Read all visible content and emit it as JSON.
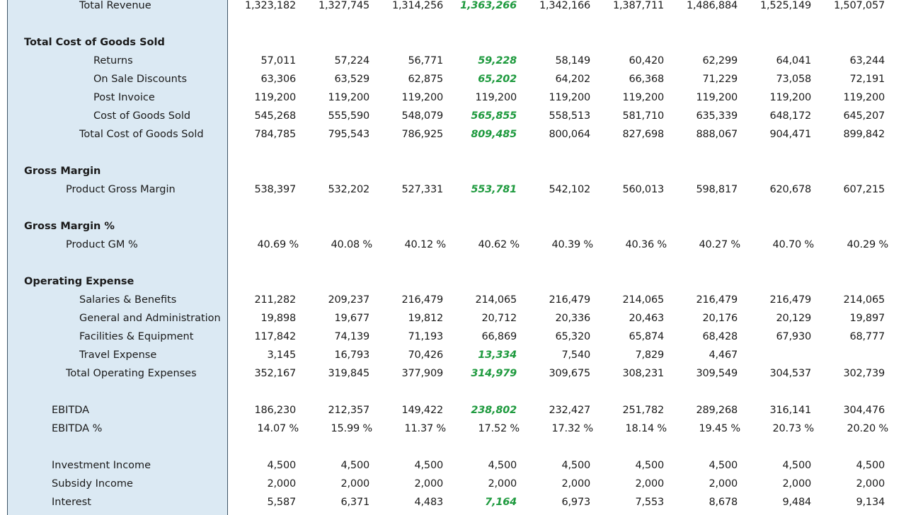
{
  "highlight_color": "#1e9a3e",
  "sidebar_color": "#dbe9f3",
  "rows": [
    {
      "label": "Total Revenue",
      "indent": 2,
      "bold": false,
      "pct": false,
      "values": [
        "1,323,182",
        "1,327,745",
        "1,314,256",
        "1,363,266",
        "1,342,166",
        "1,387,711",
        "1,486,884",
        "1,525,149",
        "1,507,057"
      ],
      "highlight": [
        3
      ]
    },
    {
      "label": "Total Cost of Goods Sold",
      "indent": 0,
      "bold": true,
      "pct": false,
      "values": [],
      "highlight": []
    },
    {
      "label": "Returns",
      "indent": 3,
      "bold": false,
      "pct": false,
      "values": [
        "57,011",
        "57,224",
        "56,771",
        "59,228",
        "58,149",
        "60,420",
        "62,299",
        "64,041",
        "63,244"
      ],
      "highlight": [
        3
      ]
    },
    {
      "label": "On Sale Discounts",
      "indent": 3,
      "bold": false,
      "pct": false,
      "values": [
        "63,306",
        "63,529",
        "62,875",
        "65,202",
        "64,202",
        "66,368",
        "71,229",
        "73,058",
        "72,191"
      ],
      "highlight": [
        3
      ]
    },
    {
      "label": "Post Invoice",
      "indent": 3,
      "bold": false,
      "pct": false,
      "values": [
        "119,200",
        "119,200",
        "119,200",
        "119,200",
        "119,200",
        "119,200",
        "119,200",
        "119,200",
        "119,200"
      ],
      "highlight": []
    },
    {
      "label": "Cost of Goods Sold",
      "indent": 3,
      "bold": false,
      "pct": false,
      "values": [
        "545,268",
        "555,590",
        "548,079",
        "565,855",
        "558,513",
        "581,710",
        "635,339",
        "648,172",
        "645,207"
      ],
      "highlight": [
        3
      ]
    },
    {
      "label": "Total Cost of Goods Sold",
      "indent": 2,
      "bold": false,
      "pct": false,
      "values": [
        "784,785",
        "795,543",
        "786,925",
        "809,485",
        "800,064",
        "827,698",
        "888,067",
        "904,471",
        "899,842"
      ],
      "highlight": [
        3
      ]
    },
    {
      "label": "Gross Margin",
      "indent": 0,
      "bold": true,
      "pct": false,
      "values": [],
      "highlight": []
    },
    {
      "label": "Product Gross Margin",
      "indent": 1,
      "bold": false,
      "pct": false,
      "values": [
        "538,397",
        "532,202",
        "527,331",
        "553,781",
        "542,102",
        "560,013",
        "598,817",
        "620,678",
        "607,215"
      ],
      "highlight": [
        3
      ]
    },
    {
      "label": "Gross Margin %",
      "indent": 0,
      "bold": true,
      "pct": false,
      "values": [],
      "highlight": []
    },
    {
      "label": "Product GM %",
      "indent": 1,
      "bold": false,
      "pct": true,
      "values": [
        "40.69 %",
        "40.08 %",
        "40.12 %",
        "40.62 %",
        "40.39 %",
        "40.36 %",
        "40.27 %",
        "40.70 %",
        "40.29 %"
      ],
      "highlight": []
    },
    {
      "label": "Operating Expense",
      "indent": 0,
      "bold": true,
      "pct": false,
      "values": [],
      "highlight": []
    },
    {
      "label": "Salaries & Benefits",
      "indent": 2,
      "bold": false,
      "pct": false,
      "values": [
        "211,282",
        "209,237",
        "216,479",
        "214,065",
        "216,479",
        "214,065",
        "216,479",
        "216,479",
        "214,065"
      ],
      "highlight": []
    },
    {
      "label": "General and Administration",
      "indent": 2,
      "bold": false,
      "pct": false,
      "values": [
        "19,898",
        "19,677",
        "19,812",
        "20,712",
        "20,336",
        "20,463",
        "20,176",
        "20,129",
        "19,897"
      ],
      "highlight": []
    },
    {
      "label": "Facilities & Equipment",
      "indent": 2,
      "bold": false,
      "pct": false,
      "values": [
        "117,842",
        "74,139",
        "71,193",
        "66,869",
        "65,320",
        "65,874",
        "68,428",
        "67,930",
        "68,777"
      ],
      "highlight": []
    },
    {
      "label": "Travel Expense",
      "indent": 2,
      "bold": false,
      "pct": false,
      "values": [
        "3,145",
        "16,793",
        "70,426",
        "13,334",
        "7,540",
        "7,829",
        "4,467",
        "",
        ""
      ],
      "highlight": [
        3
      ]
    },
    {
      "label": "Total Operating Expenses",
      "indent": 1,
      "bold": false,
      "pct": false,
      "values": [
        "352,167",
        "319,845",
        "377,909",
        "314,979",
        "309,675",
        "308,231",
        "309,549",
        "304,537",
        "302,739"
      ],
      "highlight": [
        3
      ]
    },
    {
      "label": "EBITDA",
      "indent": 4,
      "bold": false,
      "pct": false,
      "values": [
        "186,230",
        "212,357",
        "149,422",
        "238,802",
        "232,427",
        "251,782",
        "289,268",
        "316,141",
        "304,476"
      ],
      "highlight": [
        3
      ]
    },
    {
      "label": "EBITDA %",
      "indent": 4,
      "bold": false,
      "pct": true,
      "values": [
        "14.07 %",
        "15.99 %",
        "11.37 %",
        "17.52 %",
        "17.32 %",
        "18.14 %",
        "19.45 %",
        "20.73 %",
        "20.20 %"
      ],
      "highlight": []
    },
    {
      "label": "Investment Income",
      "indent": 4,
      "bold": false,
      "pct": false,
      "values": [
        "4,500",
        "4,500",
        "4,500",
        "4,500",
        "4,500",
        "4,500",
        "4,500",
        "4,500",
        "4,500"
      ],
      "highlight": []
    },
    {
      "label": "Subsidy Income",
      "indent": 4,
      "bold": false,
      "pct": false,
      "values": [
        "2,000",
        "2,000",
        "2,000",
        "2,000",
        "2,000",
        "2,000",
        "2,000",
        "2,000",
        "2,000"
      ],
      "highlight": []
    },
    {
      "label": "Interest",
      "indent": 4,
      "bold": false,
      "pct": false,
      "values": [
        "5,587",
        "6,371",
        "4,483",
        "7,164",
        "6,973",
        "7,553",
        "8,678",
        "9,484",
        "9,134"
      ],
      "highlight": [
        3
      ]
    }
  ]
}
